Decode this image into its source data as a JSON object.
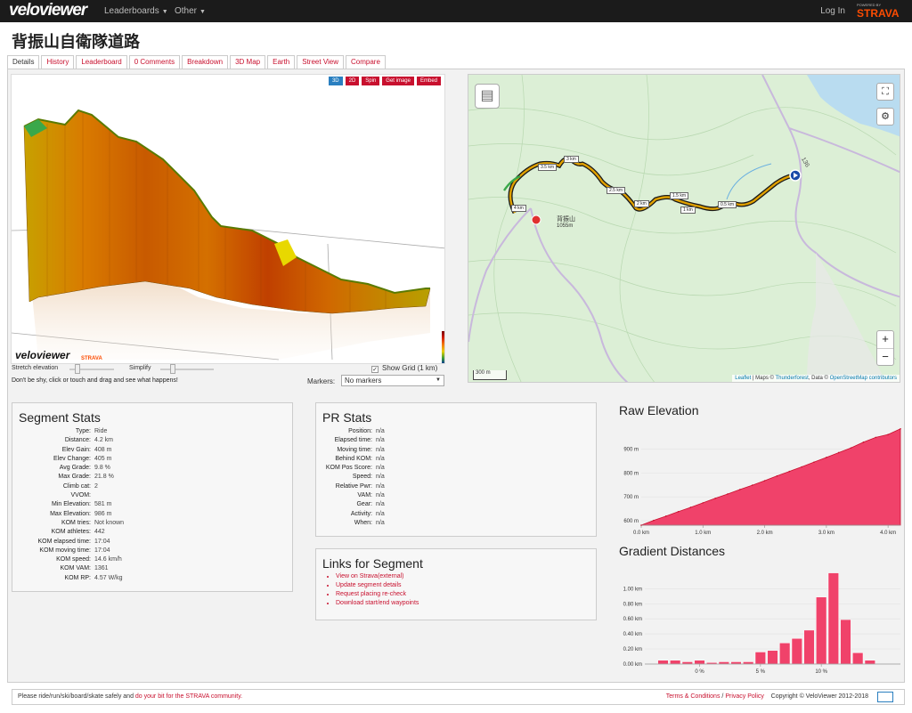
{
  "nav": {
    "logo": "veloviewer",
    "menu": [
      {
        "label": "Leaderboards"
      },
      {
        "label": "Other"
      }
    ],
    "login": "Log In",
    "powered_by": "POWERED BY",
    "strava": "STRAVA"
  },
  "page": {
    "title": "背振山自衛隊道路"
  },
  "tabs": [
    "Details",
    "History",
    "Leaderboard",
    "0 Comments",
    "Breakdown",
    "3D Map",
    "Earth",
    "Street View",
    "Compare"
  ],
  "viewer": {
    "buttons": [
      "3D",
      "2D",
      "Spin",
      "Get image",
      "Embed"
    ],
    "logo": "veloviewer",
    "strava": "STRAVA",
    "stretch_label": "Stretch elevation",
    "simplify_label": "Simplify",
    "show_grid": "Show Grid (1 km)",
    "hint": "Don't be shy, click or touch and drag and see what happens!",
    "markers_label": "Markers:",
    "markers_value": "No markers"
  },
  "map": {
    "km_labels": [
      "3.5 km",
      "3 km",
      "2.5 km",
      "2 km",
      "1.5 km",
      "1 km",
      "0.5 km",
      "4 km"
    ],
    "peak_name": "背振山",
    "peak_elev": "1055m",
    "road_label": "136",
    "scale": "300 m",
    "attr_leaflet": "Leaflet",
    "attr_maps": "| Maps ©",
    "attr_thunder": "Thunderforest",
    "attr_data": ", Data ©",
    "attr_osm": "OpenStreetMap contributors",
    "zoom_in": "+",
    "zoom_out": "−"
  },
  "segment_stats": {
    "title": "Segment Stats",
    "rows": [
      {
        "k": "Type:",
        "v": "Ride"
      },
      {
        "k": "Distance:",
        "v": "4.2 km"
      },
      {
        "k": "Elev Gain:",
        "v": "408 m"
      },
      {
        "k": "Elev Change:",
        "v": "405 m"
      },
      {
        "k": "Avg Grade:",
        "v": "9.8 %"
      },
      {
        "k": "Max Grade:",
        "v": "21.8 %"
      },
      {
        "k": "Climb cat:",
        "v": "2"
      },
      {
        "k": "VVOM:",
        "v": ""
      },
      {
        "k": "Min Elevation:",
        "v": "581 m"
      },
      {
        "k": "Max Elevation:",
        "v": "986 m"
      },
      {
        "k": "KOM tries:",
        "v": "Not known"
      },
      {
        "k": "KOM athletes:",
        "v": "442"
      },
      {
        "k": "KOM elapsed time:",
        "v": "17:04"
      },
      {
        "k": "KOM moving time:",
        "v": "17:04"
      },
      {
        "k": "KOM speed:",
        "v": "14.6 km/h"
      },
      {
        "k": "KOM VAM:",
        "v": "1361"
      },
      {
        "k": "KOM RP:",
        "v": "4.57 W/kg"
      }
    ]
  },
  "pr_stats": {
    "title": "PR Stats",
    "rows": [
      {
        "k": "Position:",
        "v": "n/a"
      },
      {
        "k": "Elapsed time:",
        "v": "n/a"
      },
      {
        "k": "Moving time:",
        "v": "n/a"
      },
      {
        "k": "Behind KOM:",
        "v": "n/a"
      },
      {
        "k": "KOM Pos Score:",
        "v": "n/a"
      },
      {
        "k": "Speed:",
        "v": "n/a"
      },
      {
        "k": "Relative Pwr:",
        "v": "n/a"
      },
      {
        "k": "VAM:",
        "v": "n/a"
      },
      {
        "k": "Gear:",
        "v": "n/a"
      },
      {
        "k": "Activity:",
        "v": "n/a"
      },
      {
        "k": "When:",
        "v": "n/a"
      }
    ]
  },
  "links": {
    "title": "Links for Segment",
    "items": [
      "View on Strava(external)",
      "Update segment details",
      "Request placing re-check",
      "Download start/end waypoints"
    ]
  },
  "colors": {
    "accent": "#c8102e",
    "chart_fill": "#f0426a",
    "chart_line": "#c8102e",
    "strava": "#fc4c02"
  },
  "chart_data": [
    {
      "type": "area",
      "title": "Raw Elevation",
      "x_unit": "km",
      "x": [
        0,
        0.2,
        0.4,
        0.6,
        0.8,
        1.0,
        1.2,
        1.4,
        1.6,
        1.8,
        2.0,
        2.2,
        2.4,
        2.6,
        2.8,
        3.0,
        3.2,
        3.4,
        3.6,
        3.8,
        4.0,
        4.2
      ],
      "y": [
        581,
        601,
        619,
        638,
        656,
        675,
        694,
        712,
        731,
        749,
        768,
        788,
        807,
        826,
        846,
        866,
        886,
        906,
        930,
        950,
        962,
        986
      ],
      "x_ticks": [
        "0.0 km",
        "1.0 km",
        "2.0 km",
        "3.0 km",
        "4.0 km"
      ],
      "x_tick_values": [
        0,
        1,
        2,
        3,
        4
      ],
      "y_ticks": [
        "600 m",
        "700 m",
        "800 m",
        "900 m"
      ],
      "y_tick_values": [
        600,
        700,
        800,
        900
      ],
      "xlim": [
        0,
        4.2
      ],
      "ylim": [
        581,
        1000
      ]
    },
    {
      "type": "bar",
      "title": "Gradient Distances",
      "categories": [
        -4,
        -3,
        -2,
        -1,
        0,
        1,
        2,
        3,
        4,
        5,
        6,
        7,
        8,
        9,
        10,
        11,
        12,
        13,
        14,
        15,
        16
      ],
      "values": [
        0.0,
        0.05,
        0.05,
        0.03,
        0.05,
        0.02,
        0.03,
        0.03,
        0.03,
        0.16,
        0.18,
        0.28,
        0.34,
        0.45,
        0.89,
        1.21,
        0.59,
        0.15,
        0.05,
        0.0,
        0.0
      ],
      "x_ticks": [
        "0 %",
        "5 %",
        "10 %"
      ],
      "x_tick_values": [
        0,
        5,
        10
      ],
      "y_ticks": [
        "0.00 km",
        "0.20 km",
        "0.40 km",
        "0.60 km",
        "0.80 km",
        "1.00 km"
      ],
      "y_tick_values": [
        0,
        0.2,
        0.4,
        0.6,
        0.8,
        1.0
      ],
      "ylim": [
        0,
        1.3
      ]
    }
  ],
  "footer": {
    "left_text": "Please ride/run/ski/board/skate safely and ",
    "left_link": "do your bit for the STRAVA community.",
    "terms": "Terms & Conditions",
    "sep": " / ",
    "privacy": "Privacy Policy",
    "copyright": "Copyright © VeloViewer 2012-2018"
  }
}
